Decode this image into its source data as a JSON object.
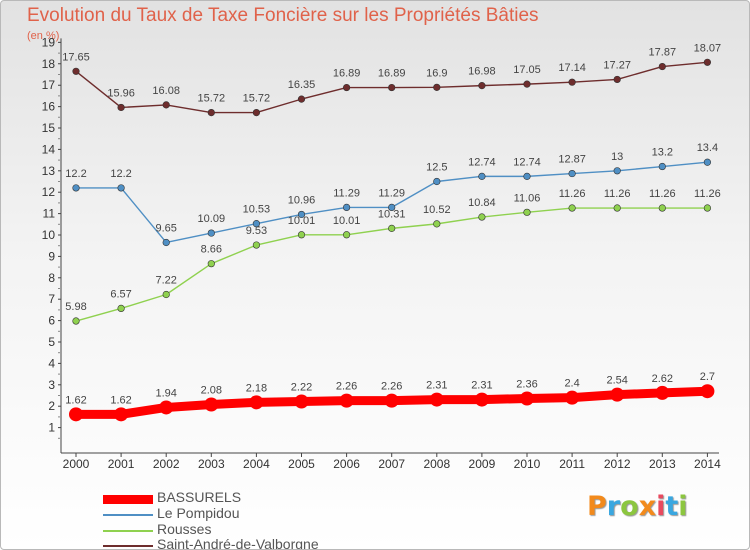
{
  "header": {
    "title": "Evolution du Taux de Taxe Foncière sur les Propriétés Bâties",
    "subtitle": "(en %)"
  },
  "chart_data": {
    "type": "line",
    "title": "Evolution du Taux de Taxe Foncière sur les Propriétés Bâties",
    "ylabel": "(en %)",
    "xlabel": "",
    "x": [
      2000,
      2001,
      2002,
      2003,
      2004,
      2005,
      2006,
      2007,
      2008,
      2009,
      2010,
      2011,
      2012,
      2013,
      2014
    ],
    "x_ticks": [
      "2000",
      "2001",
      "2002",
      "2003",
      "2004",
      "2005",
      "2006",
      "2007",
      "2008",
      "2009",
      "2010",
      "2011",
      "2012",
      "2013",
      "2014"
    ],
    "ylim": [
      0,
      19
    ],
    "y_ticks": [
      1,
      2,
      3,
      4,
      5,
      6,
      7,
      8,
      9,
      10,
      11,
      12,
      13,
      14,
      15,
      16,
      17,
      18,
      19
    ],
    "grid": false,
    "legend_position": "bottom-left",
    "series": [
      {
        "name": "BASSURELS",
        "color": "#ff0000",
        "values": [
          1.62,
          1.62,
          1.94,
          2.08,
          2.18,
          2.22,
          2.26,
          2.26,
          2.31,
          2.31,
          2.36,
          2.4,
          2.54,
          2.62,
          2.7
        ],
        "labels": [
          "1.62",
          "1.62",
          "1.94",
          "2.08",
          "2.18",
          "2.22",
          "2.26",
          "2.26",
          "2.31",
          "2.31",
          "2.36",
          "2.4",
          "2.54",
          "2.62",
          "2.7"
        ]
      },
      {
        "name": "Le Pompidou",
        "color": "#4f8fc4",
        "values": [
          12.2,
          12.2,
          9.65,
          10.09,
          10.53,
          10.96,
          11.29,
          11.29,
          12.5,
          12.74,
          12.74,
          12.87,
          13,
          13.2,
          13.4
        ],
        "labels": [
          "12.2",
          "12.2",
          "9.65",
          "10.09",
          "10.53",
          "10.96",
          "11.29",
          "11.29",
          "12.5",
          "12.74",
          "12.74",
          "12.87",
          "13",
          "13.2",
          "13.4"
        ]
      },
      {
        "name": "Rousses",
        "color": "#8fd14f",
        "values": [
          5.98,
          6.57,
          7.22,
          8.66,
          9.53,
          10.01,
          10.01,
          10.31,
          10.52,
          10.84,
          11.06,
          11.26,
          11.26,
          11.26,
          11.26
        ],
        "labels": [
          "5.98",
          "6.57",
          "7.22",
          "8.66",
          "9.53",
          "10.01",
          "10.01",
          "10.31",
          "10.52",
          "10.84",
          "11.06",
          "11.26",
          "11.26",
          "11.26",
          "11.26"
        ]
      },
      {
        "name": "Saint-André-de-Valborgne",
        "color": "#6e2d2d",
        "values": [
          17.65,
          15.96,
          16.08,
          15.72,
          15.72,
          16.35,
          16.89,
          16.89,
          16.9,
          16.98,
          17.05,
          17.14,
          17.27,
          17.87,
          18.07
        ],
        "labels": [
          "17.65",
          "15.96",
          "16.08",
          "15.72",
          "15.72",
          "16.35",
          "16.89",
          "16.89",
          "16.9",
          "16.98",
          "17.05",
          "17.14",
          "17.27",
          "17.87",
          "18.07"
        ]
      }
    ]
  },
  "logo": {
    "letters": [
      "P",
      "r",
      "o",
      "x",
      "i",
      "t",
      "i"
    ],
    "colors": [
      "#f28a1c",
      "#3aa7e0",
      "#8cc63f",
      "#f28a1c",
      "#e84a5f",
      "#3aa7e0",
      "#8cc63f"
    ]
  }
}
